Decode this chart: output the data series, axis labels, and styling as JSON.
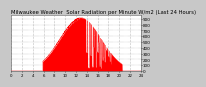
{
  "title": "Milwaukee Weather  Solar Radiation per Minute W/m2 (Last 24 Hours)",
  "title_fontsize": 3.8,
  "bg_color": "#c8c8c8",
  "plot_bg_color": "#ffffff",
  "fill_color": "#ff0000",
  "grid_color": "#888888",
  "num_points": 1440,
  "peak_hour": 12.8,
  "peak_value": 920,
  "y_ticks": [
    0,
    100,
    200,
    300,
    400,
    500,
    600,
    700,
    800,
    900
  ],
  "y_tick_fontsize": 3.0,
  "x_tick_fontsize": 2.8,
  "xlim": [
    0,
    24
  ],
  "ylim": [
    0,
    960
  ]
}
